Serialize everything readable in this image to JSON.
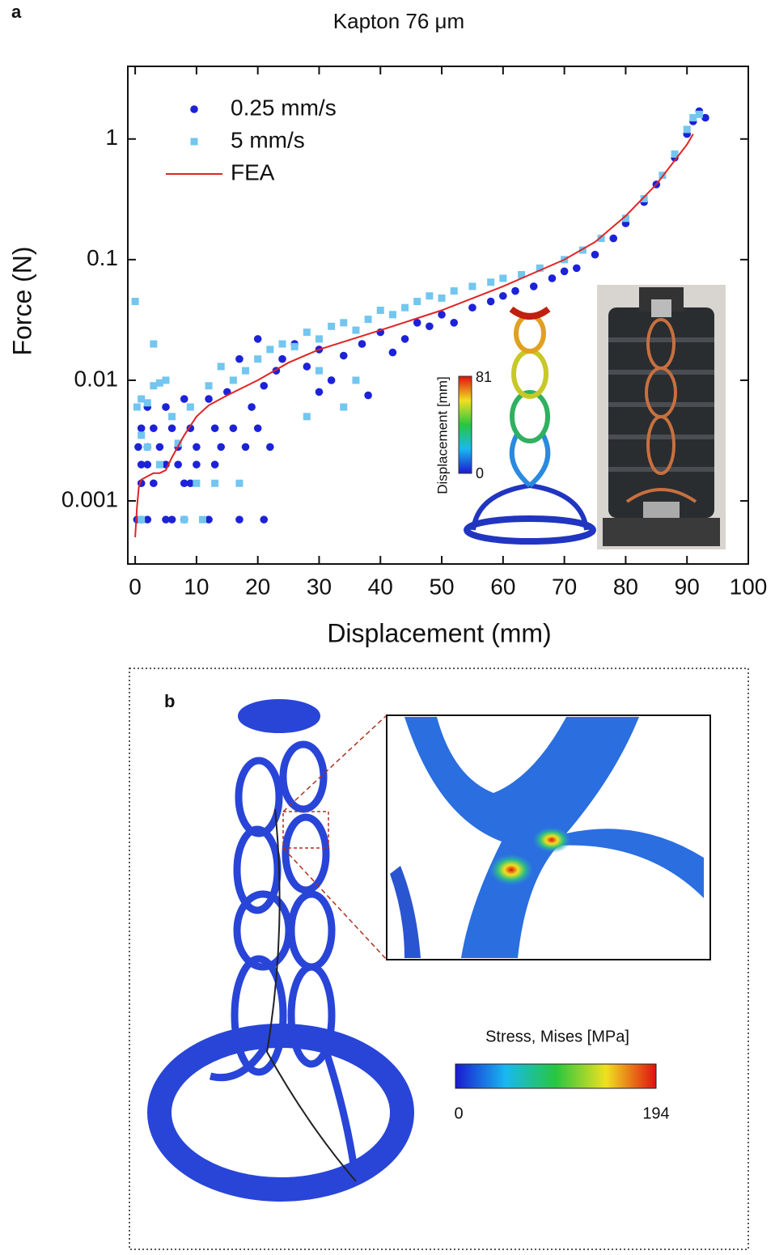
{
  "chart_data": {
    "type": "scatter",
    "title": "Kapton 76 μm",
    "x_label": "Displacement (mm)",
    "y_label": "Force (N)",
    "xlim": [
      -1.2,
      100
    ],
    "xticks": [
      0,
      10,
      20,
      30,
      40,
      50,
      60,
      70,
      80,
      90,
      100
    ],
    "ylim": [
      0.0003,
      4
    ],
    "yticks": [
      0.001,
      0.01,
      0.1,
      1
    ],
    "log_y": true,
    "legend": "upper left",
    "series": [
      {
        "name": "0.25 mm/s",
        "color": "#1c22d8",
        "marker": "circle",
        "x": [
          0.3,
          1,
          2,
          5,
          6,
          8,
          12,
          17,
          21,
          1,
          3,
          8,
          9,
          1,
          2,
          5,
          7,
          10,
          13,
          0.5,
          2,
          4,
          7,
          10,
          14,
          18,
          22,
          1,
          3,
          6,
          9,
          13,
          16,
          20,
          2,
          5,
          8,
          12,
          15,
          19,
          21,
          23,
          24,
          26,
          28,
          30,
          32,
          34,
          37,
          40,
          42,
          44,
          46,
          48,
          50,
          52,
          55,
          58,
          60,
          62,
          65,
          68,
          70,
          72,
          75,
          78,
          80,
          83,
          85,
          88,
          90,
          91,
          92,
          93,
          20,
          17,
          30,
          38
        ],
        "values": [
          0.0007,
          0.0007,
          0.0007,
          0.0007,
          0.0007,
          0.0007,
          0.0007,
          0.0007,
          0.0007,
          0.0014,
          0.0014,
          0.0014,
          0.0014,
          0.002,
          0.002,
          0.002,
          0.002,
          0.002,
          0.002,
          0.0028,
          0.0028,
          0.0028,
          0.0028,
          0.0028,
          0.0028,
          0.0028,
          0.0028,
          0.004,
          0.004,
          0.004,
          0.004,
          0.004,
          0.004,
          0.004,
          0.006,
          0.006,
          0.007,
          0.007,
          0.008,
          0.006,
          0.009,
          0.012,
          0.015,
          0.02,
          0.013,
          0.018,
          0.01,
          0.016,
          0.02,
          0.025,
          0.017,
          0.022,
          0.03,
          0.028,
          0.035,
          0.03,
          0.04,
          0.045,
          0.05,
          0.055,
          0.06,
          0.07,
          0.08,
          0.085,
          0.11,
          0.15,
          0.2,
          0.3,
          0.42,
          0.7,
          1.1,
          1.4,
          1.7,
          1.5,
          0.022,
          0.015,
          0.008,
          0.0075
        ]
      },
      {
        "name": "5 mm/s",
        "color": "#72c6ef",
        "marker": "square",
        "x": [
          0,
          0.3,
          1,
          2,
          3,
          4,
          5,
          3,
          1,
          2,
          4,
          7,
          10,
          13,
          17,
          1,
          8,
          11,
          6,
          9,
          12,
          14,
          16,
          18,
          20,
          22,
          24,
          26,
          28,
          30,
          32,
          34,
          36,
          38,
          40,
          42,
          44,
          46,
          48,
          50,
          52,
          55,
          58,
          60,
          63,
          66,
          70,
          73,
          76,
          80,
          83,
          86,
          88,
          90,
          91,
          92,
          28,
          36,
          30,
          34
        ],
        "values": [
          0.045,
          0.006,
          0.007,
          0.0065,
          0.009,
          0.0095,
          0.01,
          0.02,
          0.0035,
          0.0028,
          0.002,
          0.003,
          0.0014,
          0.0014,
          0.0014,
          0.0007,
          0.0007,
          0.0007,
          0.005,
          0.006,
          0.009,
          0.013,
          0.01,
          0.012,
          0.015,
          0.018,
          0.02,
          0.019,
          0.025,
          0.022,
          0.028,
          0.03,
          0.026,
          0.032,
          0.038,
          0.035,
          0.04,
          0.045,
          0.05,
          0.048,
          0.055,
          0.06,
          0.065,
          0.07,
          0.075,
          0.085,
          0.1,
          0.12,
          0.15,
          0.22,
          0.32,
          0.5,
          0.75,
          1.2,
          1.5,
          1.6,
          0.005,
          0.01,
          0.012,
          0.006
        ]
      },
      {
        "name": "FEA",
        "color": "#e02424",
        "marker": "line",
        "x": [
          0,
          0.3,
          0.6,
          1,
          2,
          3,
          4,
          5,
          6,
          8,
          10,
          12,
          15,
          20,
          25,
          30,
          40,
          50,
          60,
          70,
          75,
          80,
          85,
          90,
          91
        ],
        "values": [
          0.0005,
          0.0009,
          0.0013,
          0.0015,
          0.0016,
          0.0017,
          0.0017,
          0.0018,
          0.0023,
          0.0035,
          0.005,
          0.0062,
          0.0075,
          0.01,
          0.014,
          0.018,
          0.026,
          0.038,
          0.06,
          0.1,
          0.14,
          0.23,
          0.42,
          0.9,
          1.1
        ]
      }
    ]
  },
  "panel_labels": [
    "a",
    "b"
  ],
  "insets": {
    "displacement_colorbar": {
      "label": "Displacement [mm]",
      "max": 81,
      "min": 0
    },
    "stress_colorbar": {
      "label": "Stress, Mises [MPa]",
      "min": 0,
      "max": 194
    }
  }
}
